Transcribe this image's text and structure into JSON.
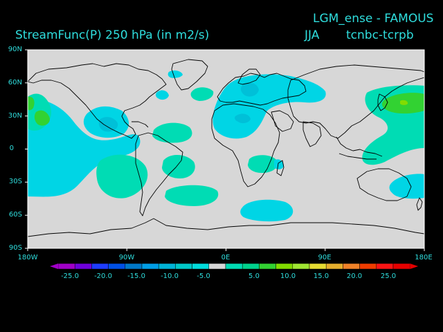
{
  "header": {
    "title_right": "LGM_ense - FAMOUS",
    "title_left": "StreamFunc(P) 250 hPa (in m2/s)",
    "season": "JJA",
    "experiment": "tcnbc-tcrpb"
  },
  "axes": {
    "lat_ticks": [
      "90N",
      "60N",
      "30N",
      "0",
      "30S",
      "60S",
      "90S"
    ],
    "lon_ticks": [
      "180W",
      "90W",
      "0E",
      "90E",
      "180E"
    ]
  },
  "colorbar": {
    "labels": [
      "-25.0",
      "-20.0",
      "-15.0",
      "-10.0",
      "-5.0",
      "5.0",
      "10.0",
      "15.0",
      "20.0",
      "25.0"
    ],
    "colors": [
      "#a000c8",
      "#6e00dc",
      "#1e3cff",
      "#0050e6",
      "#0078c8",
      "#009ee6",
      "#00b4d7",
      "#00c8c8",
      "#00dcdc",
      "#d7d7d7",
      "#00dcb4",
      "#00d28c",
      "#32d232",
      "#82dc00",
      "#a0e632",
      "#e6dc32",
      "#e6af2d",
      "#f08228",
      "#f03c00",
      "#fa1414",
      "#e60000"
    ]
  },
  "map": {
    "background_color": "#d7d7d7",
    "land_outline_color": "#000000"
  }
}
